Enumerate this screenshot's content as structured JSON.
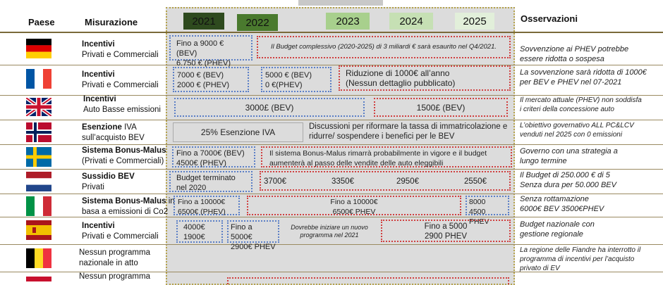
{
  "header": {
    "paese": "Paese",
    "misurazione": "Misurazione",
    "osservazioni": "Osservazioni",
    "years": [
      {
        "label": "2021",
        "color": "#2e4a1e"
      },
      {
        "label": "2022",
        "color": "#4a7a2e"
      },
      {
        "label": "2023",
        "color": "#a8d08d"
      },
      {
        "label": "2024",
        "color": "#c6e0b4"
      },
      {
        "label": "2025",
        "color": "#e2efda"
      }
    ]
  },
  "rows": [
    {
      "country": "germany",
      "measure_title": "Incentivi",
      "measure_sub": "Privati e Commerciali",
      "boxes": [
        "Fino a 9000 € (BEV)",
        "6.750 € (PHEV)",
        "Il Budget complessivo (2020-2025) di 3 miliardi € sarà esaurito nel Q4/2021."
      ],
      "note": [
        "Sovvenzione ai PHEV potrebbe",
        "essere ridotta o sospesa"
      ]
    },
    {
      "country": "france",
      "measure_title": "Incentivi",
      "measure_sub": "Privati e Commerciali",
      "boxes": [
        "7000 € (BEV)",
        "2000 € (PHEV)",
        "5000 € (BEV)",
        "0 €(PHEV)",
        "Riduzione di 1000€ all’anno",
        "(Nessun dettaglio pubblicato)"
      ],
      "note": [
        "La sovvenzione sarà ridotta di 1000€",
        "per BEV e PHEV nel 07-2021"
      ]
    },
    {
      "country": "uk",
      "measure_title": "Incentivi",
      "measure_sub": "Auto Basse emissioni",
      "boxes": [
        "3000£ (BEV)",
        "1500£ (BEV)"
      ],
      "note": [
        "Il mercato attuale (PHEV) non soddisfa",
        "i criteri della concessione auto"
      ]
    },
    {
      "country": "norway",
      "measure_title": "Esenzione",
      "measure_title_rest": " IVA",
      "measure_sub": "sull’acquisto BEV",
      "boxes": [
        "25% Esenzione IVA",
        "Discussioni per riformare la tassa di immatricolazione e",
        "ridurre/ sospendere i benefici per le BEV"
      ],
      "note": [
        "L’obiettivo governativo ALL PC&LCV",
        "venduti nel 2025 con 0 emissioni"
      ]
    },
    {
      "country": "sweden",
      "measure_title": "Sistema Bonus-Malus",
      "measure_sub": "(Privati e Commerciali)",
      "boxes": [
        "Fino a 7000€ (BEV)",
        "4500€ (PHEV)",
        "Il sistema Bonus-Malus rimarrà probabilmente  in vigore e il budget",
        "aumenterà al passo delle vendite delle auto eleggibili"
      ],
      "note": [
        "Governo con una strategia a",
        "lungo termine"
      ]
    },
    {
      "country": "netherlands",
      "measure_title": "Sussidio BEV",
      "measure_sub": "Privati",
      "boxes": [
        "Budget terminato",
        "nel 2020",
        "3700€",
        "3350€",
        "2950€",
        "2550€"
      ],
      "note": [
        "Il Budget di 250.000 € di 5",
        "Senza dura per 50.000 BEV"
      ]
    },
    {
      "country": "italy",
      "measure_title": "Sistema Bonus-Malus",
      "measure_title_rest": " in",
      "measure_sub": "basa  a emissioni di Co2",
      "boxes": [
        "Fino a 10000€",
        "6500€ (PHEV)",
        "Fino a 10000€",
        "6500€ PHEV",
        "8000",
        "4500 PHEV"
      ],
      "note": [
        "Senza rottamazione",
        "6000€ BEV  3500€PHEV"
      ]
    },
    {
      "country": "spain",
      "measure_title": "Incentivi",
      "measure_sub": "Privati e Commerciali",
      "boxes": [
        "4000€",
        "1900€",
        "Fino a 5000€",
        "2900€ PHEV",
        "Dovrebbe iniziare un nuovo",
        "programma nel 2021",
        "Fino a 5000",
        "2900 PHEV"
      ],
      "note": [
        "Budget nazionale con",
        "gestione regionale"
      ]
    },
    {
      "country": "belgium",
      "measure_title": "",
      "measure_sub": "Nessun programma",
      "measure_sub2": "nazionale in atto",
      "boxes": [],
      "note": [
        "La regione delle Fiandre ha interrotto il",
        "programma di incentivi per l’acquisto",
        "privato di EV"
      ]
    },
    {
      "country": "last",
      "measure_sub": "Nessun programma"
    }
  ]
}
